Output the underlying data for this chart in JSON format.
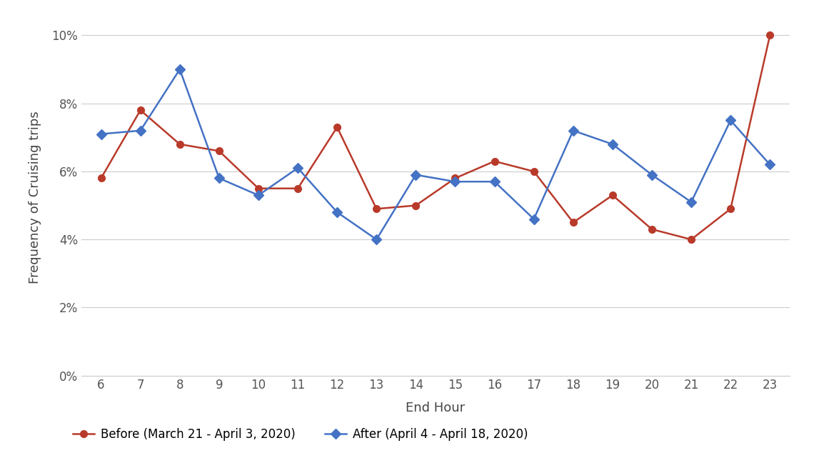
{
  "x_hours": [
    6,
    7,
    8,
    9,
    10,
    11,
    12,
    13,
    14,
    15,
    16,
    17,
    18,
    19,
    20,
    21,
    22,
    23
  ],
  "before": [
    0.058,
    0.078,
    0.068,
    0.066,
    0.055,
    0.055,
    0.073,
    0.049,
    0.05,
    0.058,
    0.063,
    0.06,
    0.045,
    0.053,
    0.043,
    0.04,
    0.049,
    0.1
  ],
  "after": [
    0.071,
    0.072,
    0.09,
    0.058,
    0.053,
    0.061,
    0.048,
    0.04,
    0.059,
    0.057,
    0.057,
    0.046,
    0.072,
    0.068,
    0.059,
    0.051,
    0.075,
    0.062
  ],
  "before_color": "#B93A2A",
  "after_color": "#4472C4",
  "before_label": "Before (March 21 - April 3, 2020)",
  "after_label": "After (April 4 - April 18, 2020)",
  "xlabel": "End Hour",
  "ylabel": "Frequency of Cruising trips",
  "ylim": [
    0,
    0.105
  ],
  "yticks": [
    0,
    0.02,
    0.04,
    0.06,
    0.08,
    0.1
  ],
  "xticks": [
    6,
    7,
    8,
    9,
    10,
    11,
    12,
    13,
    14,
    15,
    16,
    17,
    18,
    19,
    20,
    21,
    22,
    23
  ],
  "background_color": "#ffffff",
  "grid_color": "#cccccc"
}
